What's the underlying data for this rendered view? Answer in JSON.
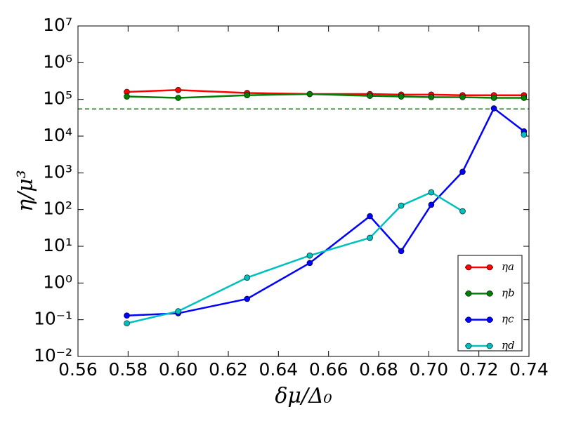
{
  "chart_data": {
    "type": "line",
    "x_label": "δμ/Δ₀",
    "y_label": "η/μ³",
    "x": [
      0.5795,
      0.6,
      0.6275,
      0.6525,
      0.6765,
      0.689,
      0.701,
      0.7135,
      0.726,
      0.738
    ],
    "series": [
      {
        "name": "ηa",
        "color": "#ff0000",
        "values": [
          160000,
          180000,
          150000,
          140000,
          140000,
          135000,
          135000,
          130000,
          130000,
          130000
        ]
      },
      {
        "name": "ηb",
        "color": "#008000",
        "values": [
          120000,
          110000,
          130000,
          140000,
          125000,
          120000,
          115000,
          115000,
          110000,
          110000
        ]
      },
      {
        "name": "ηc",
        "color": "#0000ff",
        "values": [
          0.13,
          0.15,
          0.37,
          3.5,
          66,
          7.4,
          135,
          1070,
          57000,
          13500
        ]
      },
      {
        "name": "ηd",
        "color": "#00bfbf",
        "values": [
          0.08,
          0.17,
          1.4,
          5.6,
          17,
          128,
          295,
          90,
          null,
          11000
        ]
      }
    ],
    "hline": 55000,
    "log_y": true,
    "legend": "lower right",
    "xlim": [
      0.56,
      0.74
    ],
    "xticks": [
      0.56,
      0.58,
      {
        "value": 0.6,
        "label": "0.60"
      },
      0.62,
      0.64,
      0.66,
      0.68,
      {
        "value": 0.7,
        "label": "0.70"
      },
      0.72,
      0.74
    ],
    "ylim": [
      0.01,
      10000000
    ],
    "yticks": [
      {
        "value": 0.01,
        "label": "10⁻²"
      },
      {
        "value": 0.1,
        "label": "10⁻¹"
      },
      {
        "value": 1,
        "label": "10⁰"
      },
      {
        "value": 10,
        "label": "10¹"
      },
      {
        "value": 100,
        "label": "10²"
      },
      {
        "value": 1000,
        "label": "10³"
      },
      {
        "value": 10000,
        "label": "10⁴"
      },
      {
        "value": 100000,
        "label": "10⁵"
      },
      {
        "value": 1000000,
        "label": "10⁶"
      },
      {
        "value": 10000000,
        "label": "10⁷"
      }
    ]
  }
}
